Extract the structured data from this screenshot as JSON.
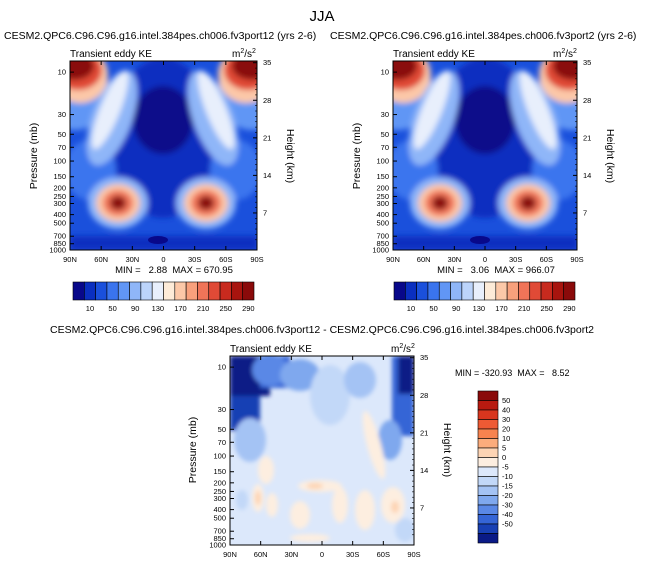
{
  "season_title": "JJA",
  "chart_data": [
    {
      "type": "heatmap",
      "title": "CESM2.QPC6.C96.C96.g16.intel.384pes.ch006.fv3port12 (yrs 2-6)",
      "subtitle": "Transient eddy KE",
      "units_label": "m²/s²",
      "ylabel": "Pressure (mb)",
      "ylabel_right": "Height (km)",
      "x_ticks": [
        "90N",
        "60N",
        "30N",
        "0",
        "30S",
        "60S",
        "90S"
      ],
      "x_values": [
        90,
        60,
        30,
        0,
        -30,
        -60,
        -90
      ],
      "y_ticks": [
        "10",
        "30",
        "50",
        "70",
        "100",
        "150",
        "200",
        "250",
        "300",
        "400",
        "500",
        "700",
        "850",
        "1000"
      ],
      "y_values": [
        10,
        30,
        50,
        70,
        100,
        150,
        200,
        250,
        300,
        400,
        500,
        700,
        850,
        1000
      ],
      "height_ticks": [
        "35",
        "28",
        "21",
        "14",
        "7"
      ],
      "height_values": [
        35,
        28,
        21,
        14,
        7
      ],
      "stats_text": "MIN =   2.88  MAX = 670.95",
      "min": 2.88,
      "max": 670.95,
      "colorbar_levels": [
        "10",
        "50",
        "90",
        "130",
        "170",
        "210",
        "250",
        "290"
      ],
      "colorbar_colors": [
        "#08088a",
        "#0a2fc0",
        "#1a50dc",
        "#3a74ee",
        "#6196f5",
        "#8fb6f8",
        "#bcd4fb",
        "#e8effc",
        "#fdebd8",
        "#fcc8a8",
        "#f8a07c",
        "#f07458",
        "#e04a36",
        "#c82a1e",
        "#a8140e",
        "#8a0a0a"
      ],
      "features": [
        {
          "name": "subtropical-jet-north",
          "lat": 40,
          "p": 280,
          "value": 290
        },
        {
          "name": "subtropical-jet-south",
          "lat": -40,
          "p": 280,
          "value": 290
        }
      ]
    },
    {
      "type": "heatmap",
      "title": "CESM2.QPC6.C96.C96.g16.intel.384pes.ch006.fv3port2 (yrs 2-6)",
      "subtitle": "Transient eddy KE",
      "units_label": "m²/s²",
      "ylabel": "Pressure (mb)",
      "ylabel_right": "Height (km)",
      "x_ticks": [
        "90N",
        "60N",
        "30N",
        "0",
        "30S",
        "60S",
        "90S"
      ],
      "x_values": [
        90,
        60,
        30,
        0,
        -30,
        -60,
        -90
      ],
      "y_ticks": [
        "10",
        "30",
        "50",
        "70",
        "100",
        "150",
        "200",
        "250",
        "300",
        "400",
        "500",
        "700",
        "850",
        "1000"
      ],
      "y_values": [
        10,
        30,
        50,
        70,
        100,
        150,
        200,
        250,
        300,
        400,
        500,
        700,
        850,
        1000
      ],
      "height_ticks": [
        "35",
        "28",
        "21",
        "14",
        "7"
      ],
      "height_values": [
        35,
        28,
        21,
        14,
        7
      ],
      "stats_text": "MIN =   3.06  MAX = 966.07",
      "min": 3.06,
      "max": 966.07,
      "colorbar_levels": [
        "10",
        "50",
        "90",
        "130",
        "170",
        "210",
        "250",
        "290"
      ],
      "colorbar_colors": [
        "#08088a",
        "#0a2fc0",
        "#1a50dc",
        "#3a74ee",
        "#6196f5",
        "#8fb6f8",
        "#bcd4fb",
        "#e8effc",
        "#fdebd8",
        "#fcc8a8",
        "#f8a07c",
        "#f07458",
        "#e04a36",
        "#c82a1e",
        "#a8140e",
        "#8a0a0a"
      ],
      "features": [
        {
          "name": "subtropical-jet-north",
          "lat": 40,
          "p": 280,
          "value": 290
        },
        {
          "name": "subtropical-jet-south",
          "lat": -40,
          "p": 280,
          "value": 290
        }
      ]
    },
    {
      "type": "heatmap",
      "title": "CESM2.QPC6.C96.C96.g16.intel.384pes.ch006.fv3port12 - CESM2.QPC6.C96.C96.g16.intel.384pes.ch006.fv3port2",
      "subtitle": "Transient eddy KE",
      "units_label": "m²/s²",
      "ylabel": "Pressure (mb)",
      "ylabel_right": "Height (km)",
      "x_ticks": [
        "90N",
        "60N",
        "30N",
        "0",
        "30S",
        "60S",
        "90S"
      ],
      "x_values": [
        90,
        60,
        30,
        0,
        -30,
        -60,
        -90
      ],
      "y_ticks": [
        "10",
        "30",
        "50",
        "70",
        "100",
        "150",
        "200",
        "250",
        "300",
        "400",
        "500",
        "700",
        "850",
        "1000"
      ],
      "y_values": [
        10,
        30,
        50,
        70,
        100,
        150,
        200,
        250,
        300,
        400,
        500,
        700,
        850,
        1000
      ],
      "height_ticks": [
        "35",
        "28",
        "21",
        "14",
        "7"
      ],
      "height_values": [
        35,
        28,
        21,
        14,
        7
      ],
      "stats_text": "MIN = -320.93  MAX =   8.52",
      "min": -320.93,
      "max": 8.52,
      "colorbar_levels": [
        "50",
        "40",
        "30",
        "20",
        "10",
        "5",
        "0",
        "-5",
        "-10",
        "-15",
        "-20",
        "-30",
        "-40",
        "-50"
      ],
      "colorbar_colors": [
        "#8a0a0a",
        "#b81a10",
        "#d8361e",
        "#ee5a34",
        "#f7834f",
        "#fbac7c",
        "#fdd4b4",
        "#fdeee0",
        "#dce8fb",
        "#c2d8f8",
        "#a4c3f4",
        "#7fa8ee",
        "#5a88e6",
        "#3565d6",
        "#1840b4",
        "#0a1a86"
      ]
    }
  ]
}
